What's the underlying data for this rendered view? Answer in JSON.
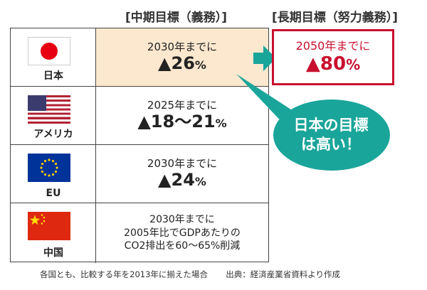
{
  "headers": {
    "mid_term": "[中期目標（義務）]",
    "long_term": "[長期目標（努力義務）]"
  },
  "rows": [
    {
      "country": "日本",
      "year_text": "2030年までに",
      "target": "▲26",
      "unit": "%"
    },
    {
      "country": "アメリカ",
      "year_text": "2025年までに",
      "target": "▲18〜21",
      "unit": "%"
    },
    {
      "country": "EU",
      "year_text": "2030年までに",
      "target": "▲24",
      "unit": "%"
    },
    {
      "country": "中国",
      "line1": "2030年までに",
      "line2": "2005年比でGDPあたりの",
      "line3": "CO2排出を60〜65%削減"
    }
  ],
  "long_term_japan": {
    "year_text": "2050年までに",
    "target": "▲80",
    "unit": "%"
  },
  "callout": {
    "line1": "日本の目標",
    "line2": "は高い！"
  },
  "footnote": {
    "note": "各国とも、比較する年を2013年に揃えた場合",
    "source": "出典：経済産業省資料より作成"
  },
  "colors": {
    "accent_red": "#c8102e",
    "teal": "#1aa59a",
    "highlight": "#fbe8cf"
  },
  "icons": {
    "japan": "japan-flag-icon",
    "usa": "usa-flag-icon",
    "eu": "eu-flag-icon",
    "china": "china-flag-icon"
  }
}
